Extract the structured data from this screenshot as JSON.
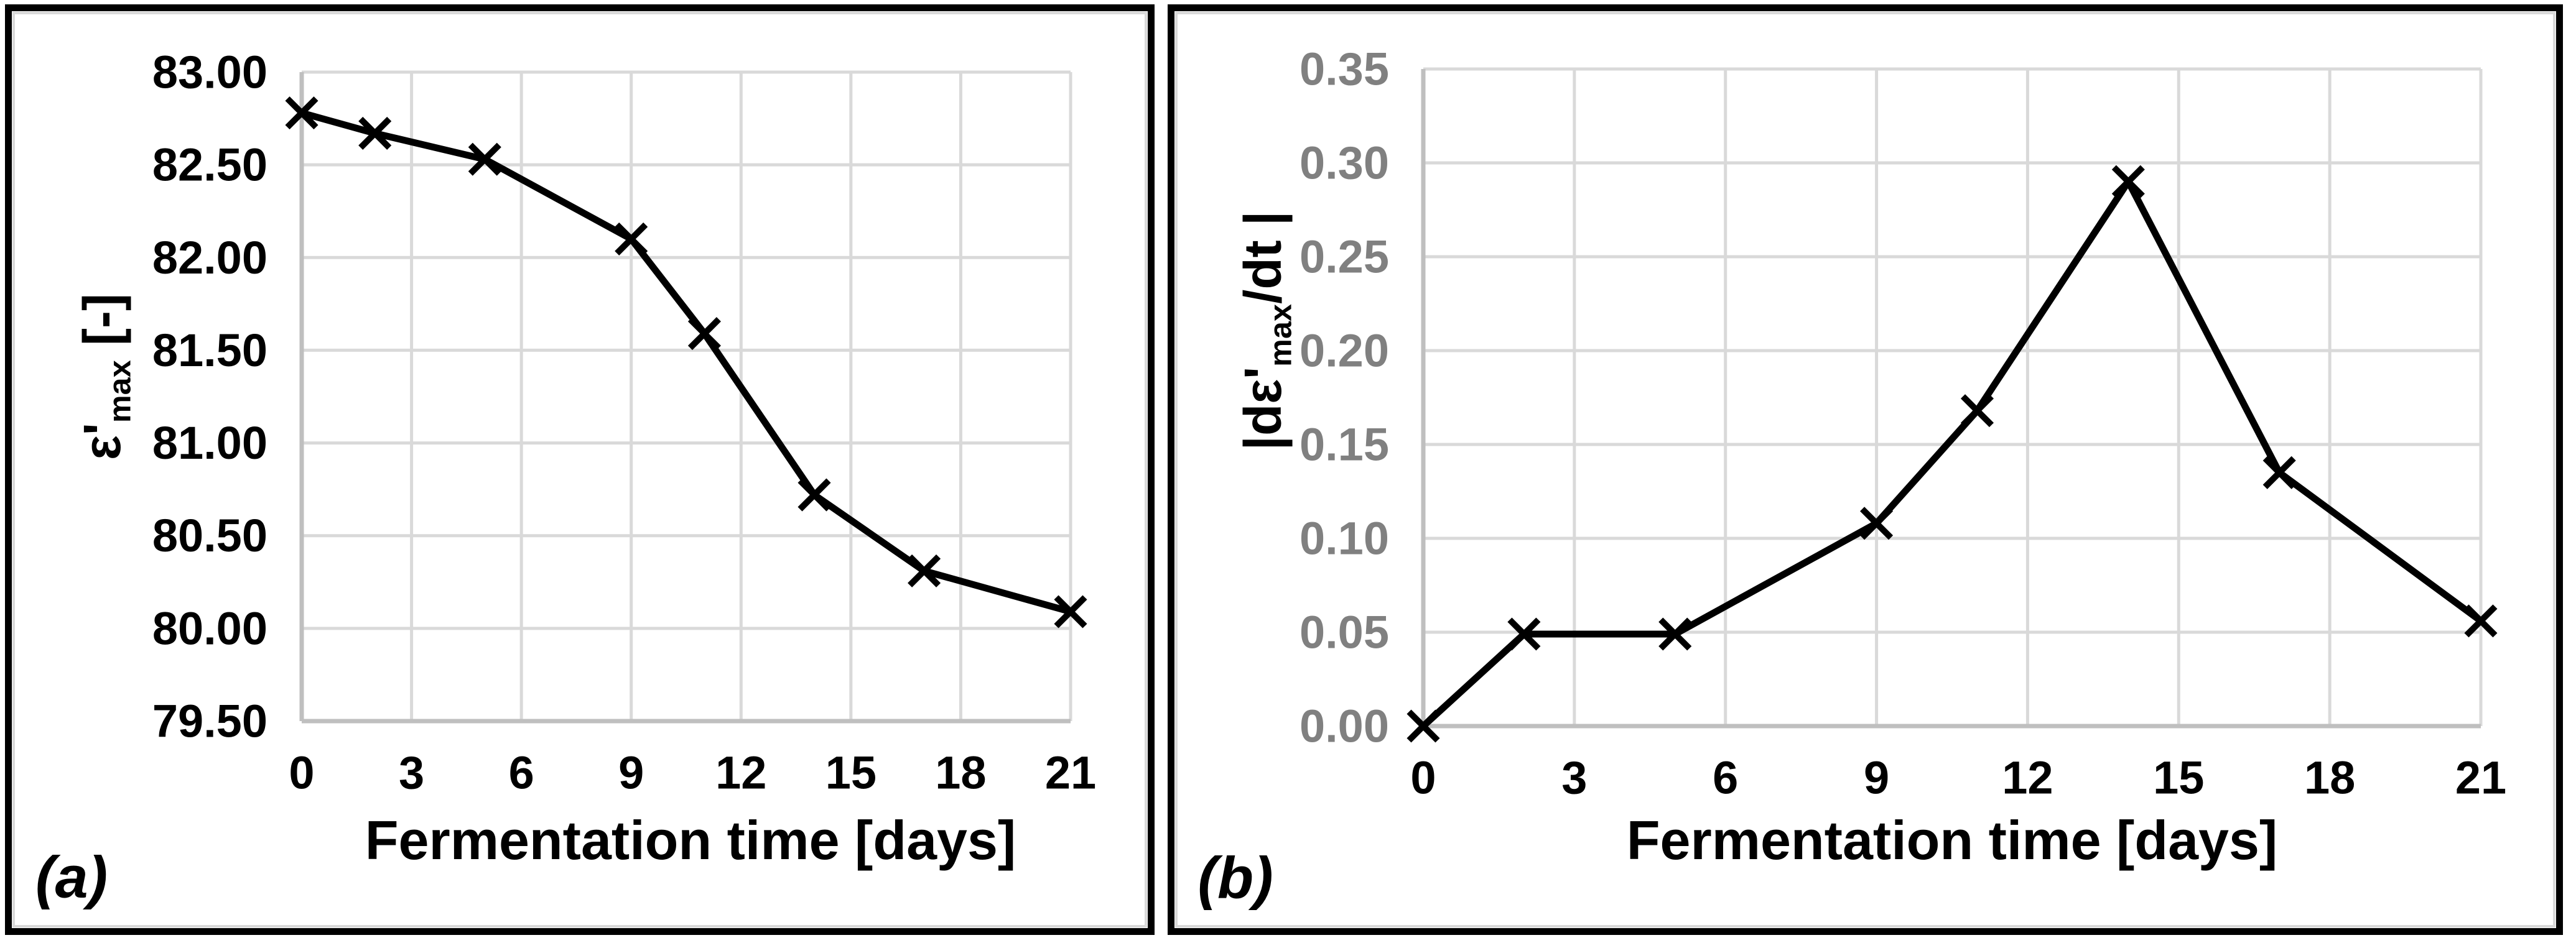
{
  "figure": {
    "panels": [
      {
        "label": "(a)",
        "x_title": "Fermentation time [days]",
        "y_title_prefix": "ε'",
        "y_title_sub": "max",
        "y_title_suffix": " [-]"
      },
      {
        "label": "(b)",
        "x_title": "Fermentation time [days]",
        "y_title_prefix": "|dε'",
        "y_title_sub": "max",
        "y_title_suffix": "/dt |"
      }
    ]
  },
  "colors": {
    "background": "#ffffff",
    "panel_border": "#000000",
    "inner_border": "#d9d9d9",
    "grid": "#d9d9d9",
    "axis": "#bfbfbf",
    "line": "#000000"
  },
  "chart_data": [
    {
      "type": "line",
      "title": "",
      "xlabel": "Fermentation time [days]",
      "ylabel": "ε'max [-]",
      "x": [
        0,
        2,
        5,
        9,
        11,
        14,
        17,
        21
      ],
      "values": [
        82.78,
        82.67,
        82.53,
        82.1,
        81.59,
        80.72,
        80.31,
        80.09
      ],
      "xlim": [
        0,
        21
      ],
      "ylim": [
        79.5,
        83.0
      ],
      "x_tick_values": [
        0,
        3,
        6,
        9,
        12,
        15,
        18,
        21
      ],
      "x_tick_labels": [
        "0",
        "3",
        "6",
        "9",
        "12",
        "15",
        "18",
        "21"
      ],
      "y_tick_values": [
        79.5,
        80.0,
        80.5,
        81.0,
        81.5,
        82.0,
        82.5,
        83.0
      ],
      "y_tick_labels": [
        "79.50",
        "80.00",
        "80.50",
        "81.00",
        "81.50",
        "82.00",
        "82.50",
        "83.00"
      ],
      "x_tick_color": "#000000",
      "y_tick_color": "#000000",
      "line_color": "#000000",
      "marker": "x",
      "grid": true,
      "legend": false
    },
    {
      "type": "line",
      "title": "",
      "xlabel": "Fermentation time [days]",
      "ylabel": "|dε'max/dt |",
      "x": [
        0,
        2,
        5,
        9,
        11,
        14,
        17,
        21
      ],
      "values": [
        0.0,
        0.049,
        0.049,
        0.108,
        0.168,
        0.29,
        0.135,
        0.056
      ],
      "xlim": [
        0,
        21
      ],
      "ylim": [
        0.0,
        0.35
      ],
      "x_tick_values": [
        0,
        3,
        6,
        9,
        12,
        15,
        18,
        21
      ],
      "x_tick_labels": [
        "0",
        "3",
        "6",
        "9",
        "12",
        "15",
        "18",
        "21"
      ],
      "y_tick_values": [
        0.0,
        0.05,
        0.1,
        0.15,
        0.2,
        0.25,
        0.3,
        0.35
      ],
      "y_tick_labels": [
        "0.00",
        "0.05",
        "0.10",
        "0.15",
        "0.20",
        "0.25",
        "0.30",
        "0.35"
      ],
      "x_tick_color": "#000000",
      "y_tick_color": "#808080",
      "line_color": "#000000",
      "marker": "x",
      "grid": true,
      "legend": false
    }
  ]
}
